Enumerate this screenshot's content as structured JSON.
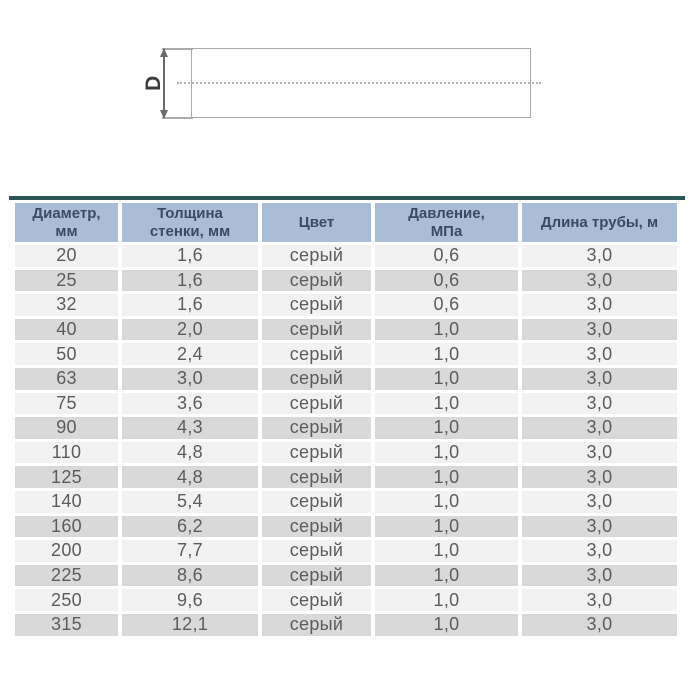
{
  "diagram": {
    "dimension_label": "D"
  },
  "table": {
    "accent_bar_color": "#2d5659",
    "header_bg": "#a9bdd9",
    "header_text_color": "#3b4a63",
    "row_light_bg": "#f2f2f2",
    "row_dark_bg": "#d9d9d9",
    "headers": [
      "Диаметр,\nмм",
      "Толщина\nстенки, мм",
      "Цвет",
      "Давление,\nМПа",
      "Длина трубы, м"
    ],
    "rows": [
      [
        "20",
        "1,6",
        "серый",
        "0,6",
        "3,0"
      ],
      [
        "25",
        "1,6",
        "серый",
        "0,6",
        "3,0"
      ],
      [
        "32",
        "1,6",
        "серый",
        "0,6",
        "3,0"
      ],
      [
        "40",
        "2,0",
        "серый",
        "1,0",
        "3,0"
      ],
      [
        "50",
        "2,4",
        "серый",
        "1,0",
        "3,0"
      ],
      [
        "63",
        "3,0",
        "серый",
        "1,0",
        "3,0"
      ],
      [
        "75",
        "3,6",
        "серый",
        "1,0",
        "3,0"
      ],
      [
        "90",
        "4,3",
        "серый",
        "1,0",
        "3,0"
      ],
      [
        "110",
        "4,8",
        "серый",
        "1,0",
        "3,0"
      ],
      [
        "125",
        "4,8",
        "серый",
        "1,0",
        "3,0"
      ],
      [
        "140",
        "5,4",
        "серый",
        "1,0",
        "3,0"
      ],
      [
        "160",
        "6,2",
        "серый",
        "1,0",
        "3,0"
      ],
      [
        "200",
        "7,7",
        "серый",
        "1,0",
        "3,0"
      ],
      [
        "225",
        "8,6",
        "серый",
        "1,0",
        "3,0"
      ],
      [
        "250",
        "9,6",
        "серый",
        "1,0",
        "3,0"
      ],
      [
        "315",
        "12,1",
        "серый",
        "1,0",
        "3,0"
      ]
    ]
  }
}
